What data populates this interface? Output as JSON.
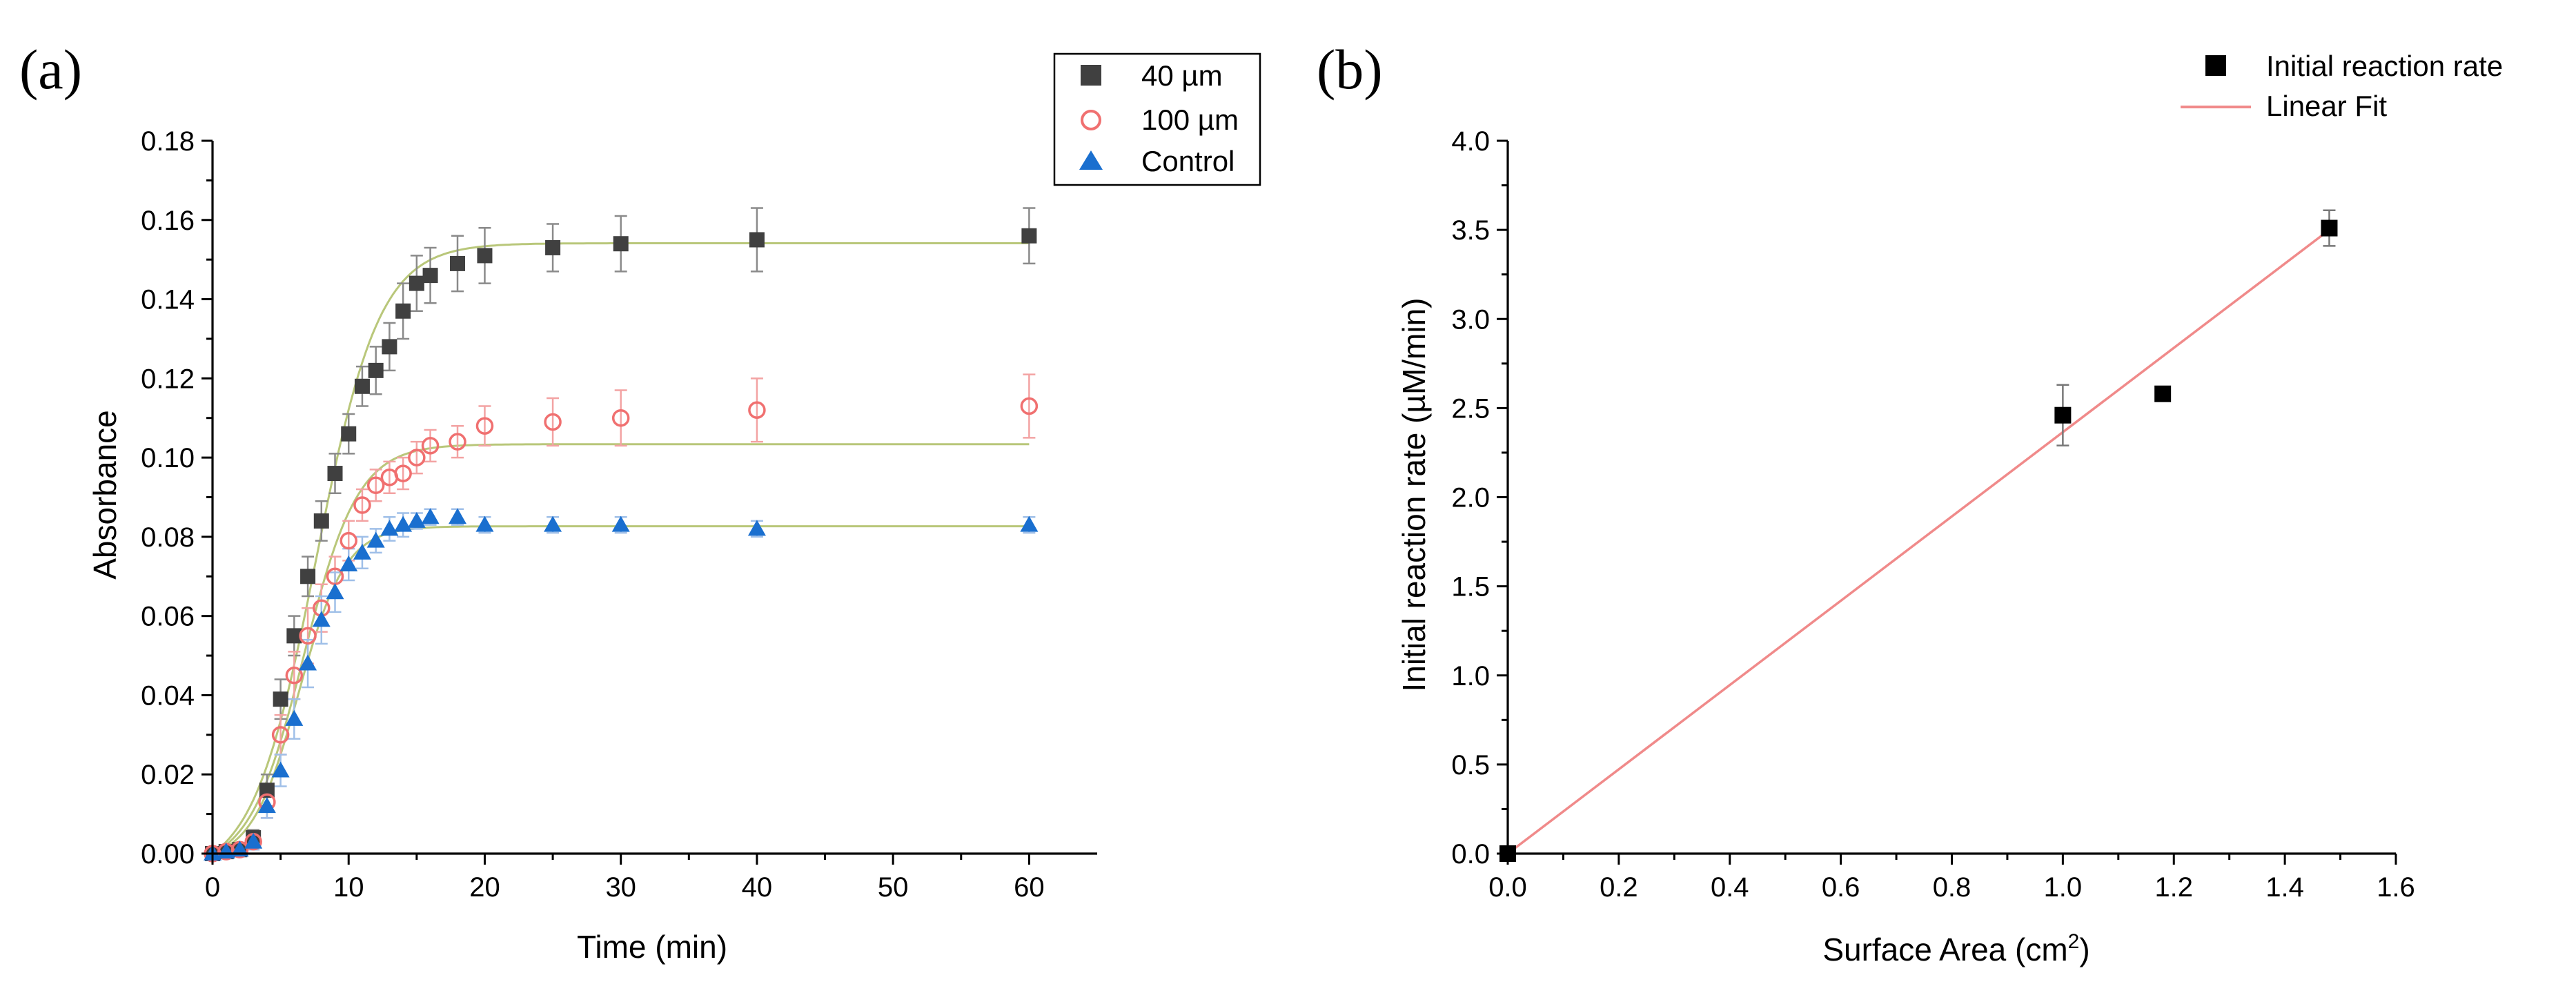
{
  "chart_data": [
    {
      "panel_label": "(a)",
      "type": "scatter",
      "xlabel": "Time (min)",
      "ylabel": "Absorbance",
      "xlim": [
        0,
        65
      ],
      "ylim": [
        0,
        0.18
      ],
      "xticks": [
        0,
        10,
        20,
        30,
        40,
        50,
        60
      ],
      "xtick_labels": [
        "0",
        "10",
        "20",
        "30",
        "40",
        "50",
        "60"
      ],
      "yticks": [
        0,
        0.02,
        0.04,
        0.06,
        0.08,
        0.1,
        0.12,
        0.14,
        0.16,
        0.18
      ],
      "ytick_labels": [
        "0.00",
        "0.02",
        "0.04",
        "0.06",
        "0.08",
        "0.10",
        "0.12",
        "0.14",
        "0.16",
        "0.18"
      ],
      "legend_position": "top-right",
      "series": [
        {
          "name": "40 µm",
          "marker": "square-filled",
          "color": "#404040",
          "x": [
            0,
            1,
            2,
            3,
            4,
            5,
            6,
            7,
            8,
            9,
            10,
            11,
            12,
            13,
            14,
            15,
            16,
            18,
            20,
            25,
            30,
            40,
            60
          ],
          "y": [
            0.0,
            0.0005,
            0.001,
            0.004,
            0.016,
            0.039,
            0.055,
            0.07,
            0.084,
            0.096,
            0.106,
            0.118,
            0.122,
            0.128,
            0.137,
            0.144,
            0.146,
            0.149,
            0.151,
            0.153,
            0.154,
            0.155,
            0.156
          ],
          "err": [
            0.0005,
            0.0005,
            0.001,
            0.002,
            0.004,
            0.005,
            0.005,
            0.005,
            0.005,
            0.005,
            0.005,
            0.005,
            0.006,
            0.006,
            0.007,
            0.007,
            0.007,
            0.007,
            0.007,
            0.006,
            0.007,
            0.008,
            0.007
          ]
        },
        {
          "name": "100 µm",
          "marker": "circle-open",
          "color": "#f07070",
          "x": [
            0,
            1,
            2,
            3,
            4,
            5,
            6,
            7,
            8,
            9,
            10,
            11,
            12,
            13,
            14,
            15,
            16,
            18,
            20,
            25,
            30,
            40,
            60
          ],
          "y": [
            0.0,
            0.0005,
            0.001,
            0.003,
            0.013,
            0.03,
            0.045,
            0.055,
            0.062,
            0.07,
            0.079,
            0.088,
            0.093,
            0.095,
            0.096,
            0.1,
            0.103,
            0.104,
            0.108,
            0.109,
            0.11,
            0.112,
            0.113
          ],
          "err": [
            0.0005,
            0.0005,
            0.001,
            0.002,
            0.004,
            0.005,
            0.006,
            0.007,
            0.006,
            0.005,
            0.005,
            0.004,
            0.004,
            0.004,
            0.004,
            0.004,
            0.004,
            0.004,
            0.005,
            0.006,
            0.007,
            0.008,
            0.008
          ]
        },
        {
          "name": "Control",
          "marker": "triangle-filled",
          "color": "#1a6fcf",
          "x": [
            0,
            1,
            2,
            3,
            4,
            5,
            6,
            7,
            8,
            9,
            10,
            11,
            12,
            13,
            14,
            15,
            16,
            18,
            20,
            25,
            30,
            40,
            60
          ],
          "y": [
            0.0,
            0.0005,
            0.001,
            0.003,
            0.012,
            0.021,
            0.034,
            0.048,
            0.059,
            0.066,
            0.073,
            0.076,
            0.079,
            0.082,
            0.083,
            0.084,
            0.085,
            0.085,
            0.083,
            0.083,
            0.083,
            0.082,
            0.083
          ],
          "err": [
            0.0005,
            0.0005,
            0.001,
            0.002,
            0.003,
            0.004,
            0.005,
            0.006,
            0.006,
            0.005,
            0.004,
            0.004,
            0.003,
            0.003,
            0.003,
            0.002,
            0.002,
            0.002,
            0.002,
            0.002,
            0.002,
            0.002,
            0.002
          ]
        }
      ],
      "fit_curves": [
        {
          "series": "40 µm",
          "plateau": 0.16,
          "midpoint": 7.6,
          "steepness": 0.43
        },
        {
          "series": "100 µm",
          "plateau": 0.107,
          "midpoint": 6.7,
          "steepness": 0.5
        },
        {
          "series": "Control",
          "plateau": 0.0848,
          "midpoint": 6.3,
          "steepness": 0.58
        }
      ],
      "fit_color": "#b9c77a"
    },
    {
      "panel_label": "(b)",
      "type": "scatter",
      "xlabel": "Surface Area (cm",
      "xlabel_sup": "2",
      "xlabel_end": ")",
      "ylabel": "Initial reaction rate (µM/min)",
      "xlim": [
        0,
        1.6
      ],
      "ylim": [
        0,
        4.0
      ],
      "xticks": [
        0,
        0.2,
        0.4,
        0.6,
        0.8,
        1.0,
        1.2,
        1.4,
        1.6
      ],
      "xtick_labels": [
        "0.0",
        "0.2",
        "0.4",
        "0.6",
        "0.8",
        "1.0",
        "1.2",
        "1.4",
        "1.6"
      ],
      "yticks": [
        0,
        0.5,
        1.0,
        1.5,
        2.0,
        2.5,
        3.0,
        3.5,
        4.0
      ],
      "ytick_labels": [
        "0.0",
        "0.5",
        "1.0",
        "1.5",
        "2.0",
        "2.5",
        "3.0",
        "3.5",
        "4.0"
      ],
      "legend_position": "top-right",
      "series": [
        {
          "name": "Initial reaction rate",
          "marker": "square-filled",
          "color": "#000000",
          "x": [
            0.0,
            1.0,
            1.18,
            1.48
          ],
          "y": [
            0.0,
            2.46,
            2.58,
            3.51
          ],
          "err": [
            0.0,
            0.17,
            0.0,
            0.1
          ]
        }
      ],
      "fit": {
        "name": "Linear Fit",
        "color": "#f08a8a",
        "x": [
          0.0,
          1.48
        ],
        "y": [
          0.0,
          3.5
        ]
      }
    }
  ]
}
